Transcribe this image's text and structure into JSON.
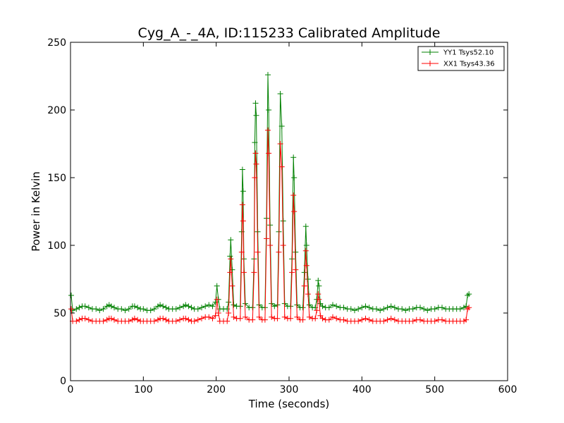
{
  "chart_data": {
    "type": "line",
    "title": "Cyg_A_-_4A, ID:115233 Calibrated Amplitude",
    "xlabel": "Time (seconds)",
    "ylabel": "Power in Kelvin",
    "xlim": [
      0,
      600
    ],
    "ylim": [
      0,
      250
    ],
    "xticks": [
      0,
      100,
      200,
      300,
      400,
      500,
      600
    ],
    "yticks": [
      0,
      50,
      100,
      150,
      200,
      250
    ],
    "grid": false,
    "legend_position": "top-right",
    "series": [
      {
        "name": "YY1 Tsys52.10",
        "color": "#008000",
        "marker": "+",
        "points": [
          [
            1,
            63
          ],
          [
            3,
            52
          ],
          [
            8,
            53
          ],
          [
            12,
            54
          ],
          [
            16,
            55
          ],
          [
            20,
            55
          ],
          [
            25,
            54
          ],
          [
            30,
            53
          ],
          [
            35,
            53
          ],
          [
            40,
            52
          ],
          [
            45,
            53
          ],
          [
            50,
            55
          ],
          [
            53,
            56
          ],
          [
            56,
            55
          ],
          [
            60,
            54
          ],
          [
            65,
            53
          ],
          [
            70,
            53
          ],
          [
            75,
            52
          ],
          [
            80,
            53
          ],
          [
            85,
            55
          ],
          [
            88,
            55
          ],
          [
            92,
            54
          ],
          [
            96,
            53
          ],
          [
            100,
            53
          ],
          [
            105,
            52
          ],
          [
            110,
            52
          ],
          [
            115,
            53
          ],
          [
            120,
            55
          ],
          [
            123,
            56
          ],
          [
            127,
            55
          ],
          [
            131,
            54
          ],
          [
            135,
            53
          ],
          [
            140,
            53
          ],
          [
            145,
            53
          ],
          [
            150,
            54
          ],
          [
            155,
            55
          ],
          [
            158,
            56
          ],
          [
            162,
            55
          ],
          [
            166,
            54
          ],
          [
            170,
            53
          ],
          [
            175,
            53
          ],
          [
            180,
            54
          ],
          [
            185,
            55
          ],
          [
            190,
            56
          ],
          [
            195,
            55
          ],
          [
            199,
            58
          ],
          [
            201,
            70
          ],
          [
            203,
            60
          ],
          [
            205,
            53
          ],
          [
            210,
            53
          ],
          [
            215,
            53
          ],
          [
            217,
            58
          ],
          [
            219,
            92
          ],
          [
            220,
            104
          ],
          [
            222,
            82
          ],
          [
            224,
            56
          ],
          [
            228,
            55
          ],
          [
            233,
            55
          ],
          [
            235,
            110
          ],
          [
            236,
            156
          ],
          [
            237,
            140
          ],
          [
            238,
            90
          ],
          [
            240,
            57
          ],
          [
            245,
            54
          ],
          [
            250,
            54
          ],
          [
            252,
            90
          ],
          [
            253,
            176
          ],
          [
            254,
            205
          ],
          [
            255,
            196
          ],
          [
            257,
            110
          ],
          [
            259,
            56
          ],
          [
            263,
            54
          ],
          [
            267,
            54
          ],
          [
            269,
            120
          ],
          [
            271,
            226
          ],
          [
            272,
            200
          ],
          [
            274,
            115
          ],
          [
            276,
            57
          ],
          [
            280,
            55
          ],
          [
            284,
            56
          ],
          [
            286,
            110
          ],
          [
            288,
            212
          ],
          [
            290,
            188
          ],
          [
            292,
            118
          ],
          [
            294,
            57
          ],
          [
            298,
            55
          ],
          [
            302,
            55
          ],
          [
            304,
            90
          ],
          [
            306,
            165
          ],
          [
            307,
            150
          ],
          [
            309,
            95
          ],
          [
            311,
            56
          ],
          [
            315,
            54
          ],
          [
            319,
            54
          ],
          [
            321,
            80
          ],
          [
            323,
            114
          ],
          [
            324,
            100
          ],
          [
            326,
            75
          ],
          [
            328,
            56
          ],
          [
            332,
            54
          ],
          [
            336,
            54
          ],
          [
            338,
            60
          ],
          [
            340,
            74
          ],
          [
            341,
            70
          ],
          [
            343,
            57
          ],
          [
            346,
            55
          ],
          [
            350,
            54
          ],
          [
            355,
            54
          ],
          [
            360,
            56
          ],
          [
            365,
            55
          ],
          [
            370,
            54
          ],
          [
            375,
            54
          ],
          [
            380,
            53
          ],
          [
            385,
            53
          ],
          [
            390,
            52
          ],
          [
            395,
            53
          ],
          [
            400,
            54
          ],
          [
            405,
            55
          ],
          [
            410,
            54
          ],
          [
            415,
            53
          ],
          [
            420,
            53
          ],
          [
            425,
            52
          ],
          [
            430,
            53
          ],
          [
            435,
            54
          ],
          [
            440,
            55
          ],
          [
            445,
            54
          ],
          [
            450,
            53
          ],
          [
            455,
            53
          ],
          [
            460,
            52
          ],
          [
            465,
            53
          ],
          [
            470,
            53
          ],
          [
            475,
            54
          ],
          [
            480,
            54
          ],
          [
            485,
            53
          ],
          [
            490,
            52
          ],
          [
            495,
            53
          ],
          [
            500,
            53
          ],
          [
            505,
            54
          ],
          [
            510,
            54
          ],
          [
            515,
            53
          ],
          [
            520,
            53
          ],
          [
            525,
            53
          ],
          [
            530,
            53
          ],
          [
            535,
            53
          ],
          [
            540,
            54
          ],
          [
            543,
            55
          ],
          [
            545,
            63
          ],
          [
            547,
            64
          ]
        ]
      },
      {
        "name": "XX1 Tsys43.36",
        "color": "#ff0000",
        "marker": "+",
        "points": [
          [
            1,
            53
          ],
          [
            3,
            44
          ],
          [
            8,
            44
          ],
          [
            12,
            45
          ],
          [
            16,
            46
          ],
          [
            20,
            46
          ],
          [
            25,
            45
          ],
          [
            30,
            44
          ],
          [
            35,
            44
          ],
          [
            40,
            44
          ],
          [
            45,
            44
          ],
          [
            50,
            45
          ],
          [
            53,
            46
          ],
          [
            56,
            46
          ],
          [
            60,
            45
          ],
          [
            65,
            44
          ],
          [
            70,
            44
          ],
          [
            75,
            44
          ],
          [
            80,
            44
          ],
          [
            85,
            45
          ],
          [
            88,
            46
          ],
          [
            92,
            45
          ],
          [
            96,
            44
          ],
          [
            100,
            44
          ],
          [
            105,
            44
          ],
          [
            110,
            44
          ],
          [
            115,
            44
          ],
          [
            120,
            45
          ],
          [
            123,
            46
          ],
          [
            127,
            46
          ],
          [
            131,
            45
          ],
          [
            135,
            44
          ],
          [
            140,
            44
          ],
          [
            145,
            44
          ],
          [
            150,
            45
          ],
          [
            155,
            46
          ],
          [
            158,
            46
          ],
          [
            162,
            45
          ],
          [
            166,
            44
          ],
          [
            170,
            44
          ],
          [
            175,
            45
          ],
          [
            180,
            46
          ],
          [
            185,
            47
          ],
          [
            190,
            47
          ],
          [
            195,
            46
          ],
          [
            199,
            48
          ],
          [
            201,
            60
          ],
          [
            203,
            50
          ],
          [
            205,
            44
          ],
          [
            210,
            44
          ],
          [
            215,
            44
          ],
          [
            217,
            50
          ],
          [
            219,
            80
          ],
          [
            220,
            90
          ],
          [
            222,
            70
          ],
          [
            224,
            47
          ],
          [
            228,
            46
          ],
          [
            233,
            46
          ],
          [
            235,
            95
          ],
          [
            236,
            130
          ],
          [
            237,
            118
          ],
          [
            238,
            80
          ],
          [
            240,
            47
          ],
          [
            245,
            45
          ],
          [
            250,
            45
          ],
          [
            252,
            80
          ],
          [
            253,
            150
          ],
          [
            254,
            168
          ],
          [
            255,
            160
          ],
          [
            257,
            95
          ],
          [
            259,
            47
          ],
          [
            263,
            45
          ],
          [
            267,
            45
          ],
          [
            269,
            105
          ],
          [
            271,
            185
          ],
          [
            272,
            168
          ],
          [
            274,
            100
          ],
          [
            276,
            47
          ],
          [
            280,
            46
          ],
          [
            284,
            46
          ],
          [
            286,
            95
          ],
          [
            288,
            175
          ],
          [
            290,
            158
          ],
          [
            292,
            100
          ],
          [
            294,
            47
          ],
          [
            298,
            46
          ],
          [
            302,
            46
          ],
          [
            304,
            80
          ],
          [
            306,
            137
          ],
          [
            307,
            125
          ],
          [
            309,
            82
          ],
          [
            311,
            47
          ],
          [
            315,
            45
          ],
          [
            319,
            45
          ],
          [
            321,
            70
          ],
          [
            323,
            96
          ],
          [
            324,
            85
          ],
          [
            326,
            64
          ],
          [
            328,
            47
          ],
          [
            332,
            46
          ],
          [
            336,
            46
          ],
          [
            338,
            52
          ],
          [
            340,
            64
          ],
          [
            341,
            60
          ],
          [
            343,
            48
          ],
          [
            346,
            46
          ],
          [
            350,
            45
          ],
          [
            355,
            45
          ],
          [
            360,
            47
          ],
          [
            365,
            46
          ],
          [
            370,
            45
          ],
          [
            375,
            45
          ],
          [
            380,
            44
          ],
          [
            385,
            44
          ],
          [
            390,
            44
          ],
          [
            395,
            44
          ],
          [
            400,
            45
          ],
          [
            405,
            46
          ],
          [
            410,
            45
          ],
          [
            415,
            44
          ],
          [
            420,
            44
          ],
          [
            425,
            44
          ],
          [
            430,
            44
          ],
          [
            435,
            45
          ],
          [
            440,
            46
          ],
          [
            445,
            45
          ],
          [
            450,
            44
          ],
          [
            455,
            44
          ],
          [
            460,
            44
          ],
          [
            465,
            44
          ],
          [
            470,
            44
          ],
          [
            475,
            45
          ],
          [
            480,
            45
          ],
          [
            485,
            44
          ],
          [
            490,
            44
          ],
          [
            495,
            44
          ],
          [
            500,
            44
          ],
          [
            505,
            45
          ],
          [
            510,
            45
          ],
          [
            515,
            44
          ],
          [
            520,
            44
          ],
          [
            525,
            44
          ],
          [
            530,
            44
          ],
          [
            535,
            44
          ],
          [
            540,
            44
          ],
          [
            543,
            45
          ],
          [
            545,
            53
          ],
          [
            547,
            54
          ]
        ]
      }
    ]
  }
}
